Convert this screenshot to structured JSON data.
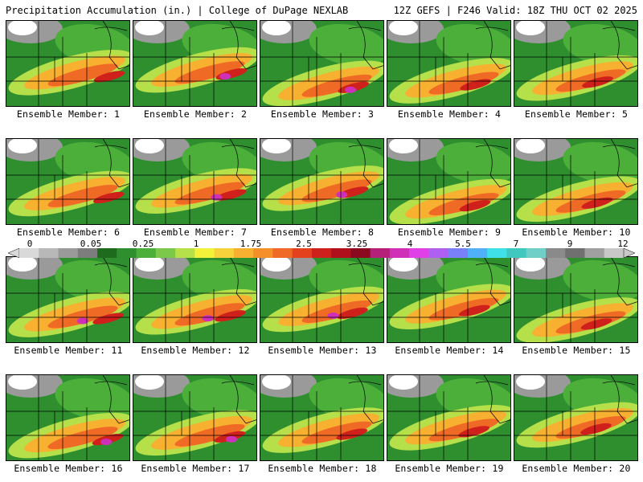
{
  "header": {
    "title": "Precipitation Accumulation (in.) | College of DuPage NEXLAB",
    "run_info": "12Z GEFS | F246 Valid: 18Z THU OCT 02 2025"
  },
  "members": [
    "Ensemble Member: 1",
    "Ensemble Member: 2",
    "Ensemble Member: 3",
    "Ensemble Member: 4",
    "Ensemble Member: 5",
    "Ensemble Member: 6",
    "Ensemble Member: 7",
    "Ensemble Member: 8",
    "Ensemble Member: 9",
    "Ensemble Member: 10",
    "Ensemble Member: 11",
    "Ensemble Member: 12",
    "Ensemble Member: 13",
    "Ensemble Member: 14",
    "Ensemble Member: 15",
    "Ensemble Member: 16",
    "Ensemble Member: 17",
    "Ensemble Member: 18",
    "Ensemble Member: 19",
    "Ensemble Member: 20"
  ],
  "colorbar": {
    "labels": [
      "0",
      "0.05",
      "0.25",
      "1",
      "1.75",
      "2.5",
      "3.25",
      "4",
      "5.5",
      "7",
      "9",
      "12"
    ],
    "colors": [
      "#d9d9d9",
      "#b8b8b8",
      "#9a9a9a",
      "#7d7d7d",
      "#1e6b1e",
      "#2f8f2f",
      "#4caf3a",
      "#7cc84a",
      "#b5e04a",
      "#f2f23a",
      "#f7d23a",
      "#f8b030",
      "#f58f2a",
      "#ef6a25",
      "#e4411f",
      "#d0201c",
      "#b0101c",
      "#8a0a20",
      "#b4207a",
      "#d030b8",
      "#e040e8",
      "#b060f0",
      "#7a80f8",
      "#50b0f8",
      "#40e0e8",
      "#40c8c0",
      "#70d0c8",
      "#8a8a8a",
      "#707070",
      "#a0a0a0",
      "#c8c8c8"
    ]
  }
}
